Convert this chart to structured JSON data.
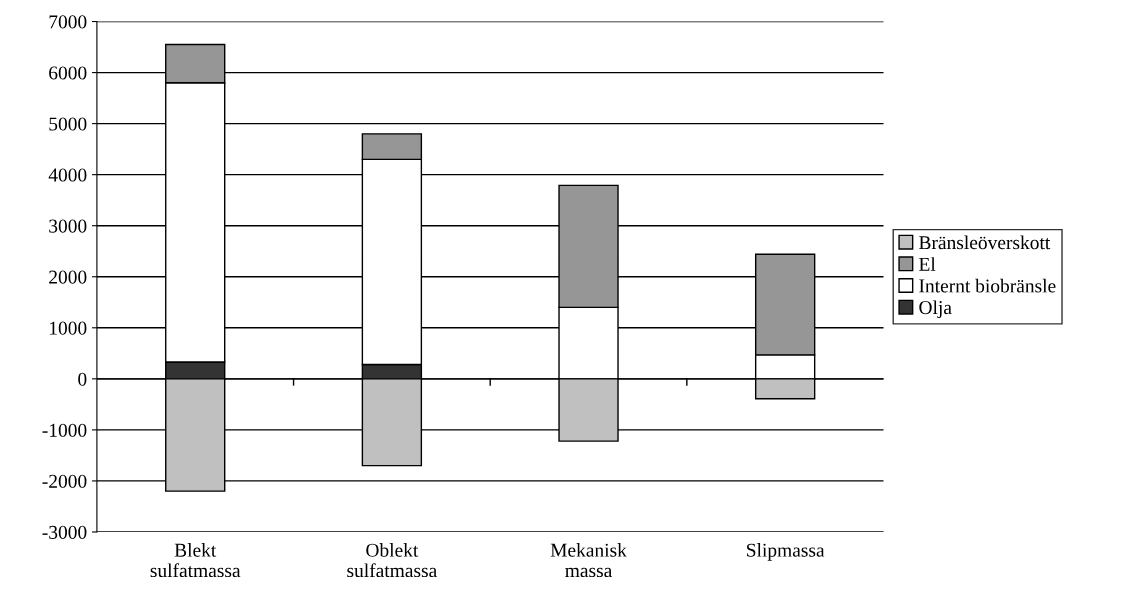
{
  "chart_data": {
    "type": "bar",
    "stacked": true,
    "categories": [
      "Blekt\nsulfatmassa",
      "Oblekt\nsulfatmassa",
      "Mekanisk\nmassa",
      "Slipmassa"
    ],
    "series": [
      {
        "name": "Olja",
        "color": "#333333",
        "values": [
          330,
          280,
          null,
          0
        ]
      },
      {
        "name": "Internt biobränsle",
        "color": "#ffffff",
        "values": [
          5470,
          4020,
          1400,
          470
        ]
      },
      {
        "name": "El",
        "color": "#969696",
        "values": [
          750,
          500,
          2390,
          1970
        ]
      },
      {
        "name": "Bränsleöverskott",
        "color": "#c0c0c0",
        "values": [
          -2200,
          -1700,
          -1220,
          -390
        ]
      }
    ],
    "ylim": [
      -3000,
      7000
    ],
    "yticks": [
      -3000,
      -2000,
      -1000,
      0,
      1000,
      2000,
      3000,
      4000,
      5000,
      6000,
      7000
    ],
    "grid": "y",
    "legend": "right"
  }
}
